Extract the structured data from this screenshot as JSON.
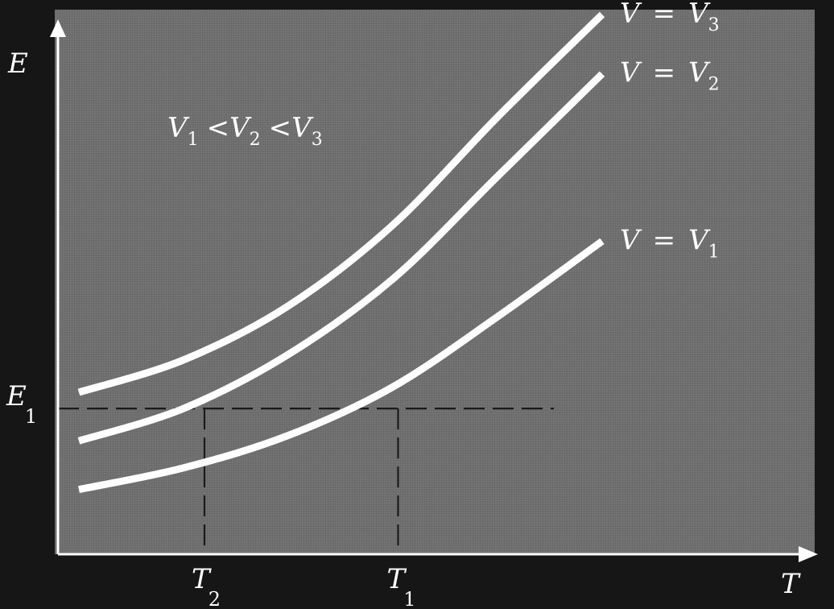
{
  "chart_data": {
    "type": "line",
    "title": "",
    "xlabel": "T",
    "ylabel": "E",
    "annotation": {
      "condition": [
        "V",
        "1",
        "<",
        "V",
        "2",
        "<",
        "V",
        "3"
      ]
    },
    "series": [
      {
        "name": "V = V3",
        "base": "V",
        "eq": "=",
        "sub_base": "V",
        "sub": "3",
        "color": "#ffffff",
        "x": [
          0.0,
          0.2,
          0.4,
          0.6,
          0.8,
          1.0
        ],
        "y": [
          0.3,
          0.36,
          0.46,
          0.61,
          0.81,
          1.0
        ]
      },
      {
        "name": "V = V2",
        "base": "V",
        "eq": "=",
        "sub_base": "V",
        "sub": "2",
        "color": "#ffffff",
        "x": [
          0.0,
          0.2,
          0.4,
          0.6,
          0.8,
          1.0
        ],
        "y": [
          0.21,
          0.27,
          0.37,
          0.51,
          0.7,
          0.89
        ]
      },
      {
        "name": "V = V1",
        "base": "V",
        "eq": "=",
        "sub_base": "V",
        "sub": "1",
        "color": "#ffffff",
        "x": [
          0.0,
          0.2,
          0.4,
          0.6,
          0.8,
          1.0
        ],
        "y": [
          0.12,
          0.16,
          0.22,
          0.31,
          0.44,
          0.58
        ]
      }
    ],
    "reference": {
      "E1": {
        "label": "E",
        "sub": "1",
        "value": 0.27
      },
      "T2": {
        "label": "T",
        "sub": "2",
        "value": 0.24
      },
      "T1": {
        "label": "T",
        "sub": "1",
        "value": 0.61
      }
    },
    "xlim": [
      -0.04,
      1.36
    ],
    "ylim": [
      0.0,
      1.0
    ],
    "grid": false,
    "legend": "inline-labels"
  }
}
